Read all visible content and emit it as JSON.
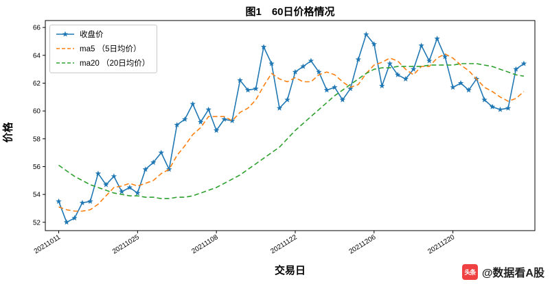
{
  "chart": {
    "title": "图1　60日价格情况",
    "xlabel": "交易日",
    "ylabel": "价格"
  },
  "chart_data": {
    "type": "line",
    "title": "图1　60日价格情况",
    "xlabel": "交易日",
    "ylabel": "价格",
    "grid": false,
    "legend_position": "upper-left",
    "n_points": 60,
    "xlim": [
      -1.7,
      60.4
    ],
    "ylim": [
      51.4,
      66.5
    ],
    "y_ticks": [
      52,
      54,
      56,
      58,
      60,
      62,
      64,
      66
    ],
    "x_tick_positions": [
      0,
      10,
      20,
      30,
      40,
      50
    ],
    "x_tick_labels": [
      "20211011",
      "20211025",
      "20211108",
      "20211122",
      "20211206",
      "20211220"
    ],
    "series": [
      {
        "name": "收盘价",
        "color": "#1f77b4",
        "dash": null,
        "marker": "star",
        "values": [
          53.5,
          52.0,
          52.3,
          53.4,
          53.5,
          55.5,
          54.7,
          55.3,
          54.2,
          54.5,
          54.1,
          55.8,
          56.3,
          57.0,
          55.8,
          59.0,
          59.4,
          60.5,
          59.2,
          60.1,
          58.6,
          59.4,
          59.3,
          62.2,
          61.5,
          61.6,
          64.6,
          63.4,
          60.2,
          60.8,
          62.8,
          63.2,
          63.6,
          62.8,
          61.5,
          61.7,
          60.8,
          61.6,
          63.7,
          65.5,
          64.8,
          61.8,
          63.4,
          62.6,
          62.3,
          63.0,
          64.7,
          63.6,
          65.2,
          63.9,
          61.7,
          62.0,
          61.5,
          62.3,
          60.8,
          60.3,
          60.1,
          60.2,
          63.0,
          63.4
        ]
      },
      {
        "name": "ma5 （5日均价）",
        "color": "#ff7f0e",
        "dash": [
          7,
          4
        ],
        "marker": null,
        "values": [
          53.1,
          52.9,
          52.8,
          52.8,
          52.9,
          53.3,
          53.9,
          54.5,
          54.6,
          54.8,
          54.6,
          54.8,
          55.0,
          55.5,
          55.8,
          56.8,
          57.5,
          58.3,
          58.8,
          59.6,
          59.6,
          59.6,
          59.3,
          59.9,
          60.2,
          60.8,
          61.8,
          62.7,
          62.3,
          62.1,
          62.4,
          62.1,
          62.1,
          62.6,
          62.8,
          62.6,
          62.1,
          61.7,
          61.9,
          62.7,
          63.3,
          63.5,
          63.8,
          63.6,
          63.0,
          62.6,
          63.2,
          63.2,
          63.8,
          64.1,
          63.8,
          63.3,
          62.9,
          62.3,
          61.7,
          61.4,
          61.0,
          60.7,
          60.9,
          61.4
        ]
      },
      {
        "name": "ma20 （20日均价）",
        "color": "#2ca02c",
        "dash": [
          7,
          4
        ],
        "marker": null,
        "values": [
          56.1,
          55.7,
          55.3,
          55.0,
          54.7,
          54.5,
          54.3,
          54.1,
          54.0,
          53.9,
          53.9,
          53.8,
          53.8,
          53.7,
          53.7,
          53.8,
          53.8,
          53.9,
          54.1,
          54.3,
          54.5,
          54.8,
          55.1,
          55.4,
          55.8,
          56.2,
          56.6,
          57.0,
          57.4,
          58.0,
          58.6,
          59.1,
          59.6,
          60.1,
          60.6,
          61.1,
          61.5,
          61.9,
          62.3,
          62.7,
          63.0,
          63.1,
          63.1,
          63.2,
          63.2,
          63.2,
          63.2,
          63.3,
          63.3,
          63.3,
          63.3,
          63.4,
          63.4,
          63.4,
          63.3,
          63.2,
          63.0,
          62.8,
          62.6,
          62.5
        ]
      }
    ]
  },
  "watermark": {
    "icon_text": "头条",
    "icon_color": "#f04142",
    "handle": "@数据看A股"
  }
}
